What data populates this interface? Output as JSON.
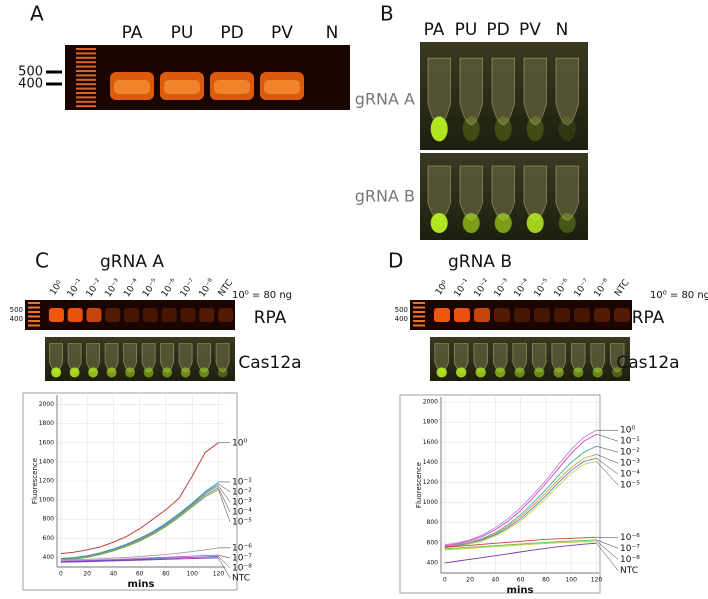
{
  "panels": {
    "A": {
      "label": "A",
      "lanes": [
        "PA",
        "PU",
        "PD",
        "PV",
        "N"
      ],
      "markers": [
        "500",
        "400"
      ]
    },
    "B": {
      "label": "B",
      "lanes": [
        "PA",
        "PU",
        "PD",
        "PV",
        "N"
      ],
      "rows": [
        "gRNA A",
        "gRNA B"
      ]
    },
    "C": {
      "label": "C",
      "title": "gRNA A",
      "note": "10⁰ = 80 ng",
      "markers": [
        "500",
        "400"
      ],
      "rows": [
        "RPA",
        "Cas12a"
      ]
    },
    "D": {
      "label": "D",
      "title": "gRNA B",
      "note": "10⁰ = 80 ng",
      "markers": [
        "500",
        "400"
      ],
      "rows": [
        "RPA",
        "Cas12a"
      ]
    }
  },
  "chart_data": [
    {
      "type": "line",
      "x_label": "mins",
      "y_label": "Fluorescence",
      "x": [
        0,
        10,
        20,
        30,
        40,
        50,
        60,
        70,
        80,
        90,
        100,
        110,
        120
      ],
      "xlim": [
        -3,
        125
      ],
      "xticks": [
        0,
        20,
        40,
        60,
        80,
        100,
        120
      ],
      "ylim": [
        300,
        2100
      ],
      "yticks": [
        400,
        600,
        800,
        1000,
        1200,
        1400,
        1600,
        1800,
        2000
      ],
      "grid": true,
      "series": [
        {
          "name": "10⁰",
          "color": "#c03030",
          "values": [
            440,
            455,
            480,
            510,
            560,
            620,
            700,
            800,
            900,
            1020,
            1250,
            1500,
            1600
          ]
        },
        {
          "name": "10⁻¹",
          "color": "#40c0e0",
          "values": [
            390,
            400,
            420,
            450,
            490,
            540,
            600,
            670,
            760,
            860,
            970,
            1090,
            1190
          ]
        },
        {
          "name": "10⁻²",
          "color": "#4070d0",
          "values": [
            385,
            395,
            415,
            445,
            485,
            535,
            595,
            665,
            750,
            850,
            960,
            1080,
            1170
          ]
        },
        {
          "name": "10⁻³",
          "color": "#a0a050",
          "values": [
            380,
            390,
            410,
            440,
            478,
            528,
            585,
            655,
            740,
            840,
            950,
            1065,
            1150
          ]
        },
        {
          "name": "10⁻⁴",
          "color": "#909090",
          "values": [
            375,
            385,
            405,
            435,
            472,
            520,
            578,
            648,
            732,
            830,
            940,
            1050,
            1130
          ]
        },
        {
          "name": "10⁻⁵",
          "color": "#70b050",
          "values": [
            372,
            382,
            400,
            430,
            468,
            515,
            570,
            640,
            722,
            820,
            928,
            1035,
            1110
          ]
        },
        {
          "name": "10⁻⁶",
          "color": "#a0a0a0",
          "values": [
            370,
            375,
            380,
            385,
            392,
            400,
            410,
            420,
            432,
            446,
            462,
            480,
            500
          ]
        },
        {
          "name": "10⁻⁷",
          "color": "#d050d0",
          "values": [
            360,
            364,
            368,
            372,
            378,
            384,
            390,
            396,
            402,
            408,
            414,
            420,
            425
          ]
        },
        {
          "name": "10⁻⁸",
          "color": "#5060d0",
          "values": [
            355,
            358,
            362,
            366,
            370,
            375,
            380,
            385,
            390,
            395,
            400,
            405,
            410
          ]
        },
        {
          "name": "NTC",
          "color": "#8040b0",
          "values": [
            350,
            352,
            356,
            360,
            364,
            368,
            372,
            376,
            380,
            384,
            388,
            392,
            395
          ]
        }
      ]
    },
    {
      "type": "line",
      "x_label": "mins",
      "y_label": "Fluorescence",
      "x": [
        0,
        10,
        20,
        30,
        40,
        50,
        60,
        70,
        80,
        90,
        100,
        110,
        120
      ],
      "xlim": [
        -3,
        122
      ],
      "xticks": [
        0,
        20,
        40,
        60,
        80,
        100,
        120
      ],
      "ylim": [
        300,
        2050
      ],
      "yticks": [
        400,
        600,
        800,
        1000,
        1200,
        1400,
        1600,
        1800,
        2000
      ],
      "grid": true,
      "series": [
        {
          "name": "10⁰",
          "color": "#c080e0",
          "values": [
            580,
            600,
            630,
            680,
            750,
            840,
            950,
            1080,
            1220,
            1380,
            1530,
            1650,
            1720
          ]
        },
        {
          "name": "10⁻¹",
          "color": "#e040c0",
          "values": [
            570,
            590,
            620,
            665,
            730,
            815,
            920,
            1050,
            1190,
            1340,
            1490,
            1610,
            1680
          ]
        },
        {
          "name": "10⁻²",
          "color": "#40b0a0",
          "values": [
            560,
            580,
            605,
            645,
            700,
            780,
            880,
            1000,
            1130,
            1270,
            1400,
            1500,
            1560
          ]
        },
        {
          "name": "10⁻³",
          "color": "#e0a040",
          "values": [
            555,
            575,
            600,
            635,
            690,
            765,
            860,
            975,
            1100,
            1230,
            1350,
            1440,
            1480
          ]
        },
        {
          "name": "10⁻⁴",
          "color": "#5080d0",
          "values": [
            550,
            570,
            595,
            630,
            680,
            750,
            840,
            950,
            1070,
            1200,
            1320,
            1410,
            1440
          ]
        },
        {
          "name": "10⁻⁵",
          "color": "#d8d040",
          "values": [
            545,
            565,
            590,
            620,
            670,
            735,
            820,
            925,
            1040,
            1170,
            1290,
            1380,
            1410
          ]
        },
        {
          "name": "10⁻⁶",
          "color": "#d04040",
          "values": [
            560,
            565,
            575,
            585,
            595,
            605,
            615,
            625,
            635,
            640,
            645,
            650,
            655
          ]
        },
        {
          "name": "10⁻⁷",
          "color": "#60c040",
          "values": [
            540,
            548,
            556,
            564,
            572,
            580,
            588,
            596,
            604,
            612,
            618,
            624,
            630
          ]
        },
        {
          "name": "10⁻⁸",
          "color": "#c0d040",
          "values": [
            530,
            538,
            546,
            554,
            562,
            570,
            578,
            586,
            594,
            600,
            606,
            612,
            618
          ]
        },
        {
          "name": "NTC",
          "color": "#7040a0",
          "values": [
            400,
            418,
            436,
            454,
            472,
            490,
            510,
            528,
            546,
            562,
            574,
            586,
            596
          ]
        }
      ]
    }
  ]
}
